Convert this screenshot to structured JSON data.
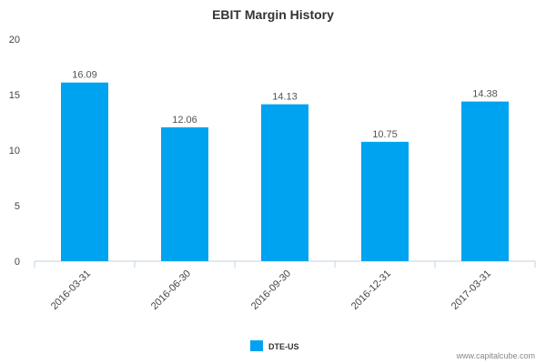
{
  "chart_data": {
    "type": "bar",
    "title": "EBIT Margin History",
    "categories": [
      "2016-03-31",
      "2016-06-30",
      "2016-09-30",
      "2016-12-31",
      "2017-03-31"
    ],
    "series": [
      {
        "name": "DTE-US",
        "values": [
          16.09,
          12.06,
          14.13,
          10.75,
          14.38
        ],
        "color": "#00a3f0"
      }
    ],
    "data_labels": [
      "16.09",
      "12.06",
      "14.13",
      "10.75",
      "14.38"
    ],
    "y_ticks": [
      "0",
      "5",
      "10",
      "15",
      "20"
    ],
    "ylim": [
      0,
      20
    ],
    "grid": false,
    "legend_position": "bottom-center"
  },
  "credit": "www.capitalcube.com"
}
